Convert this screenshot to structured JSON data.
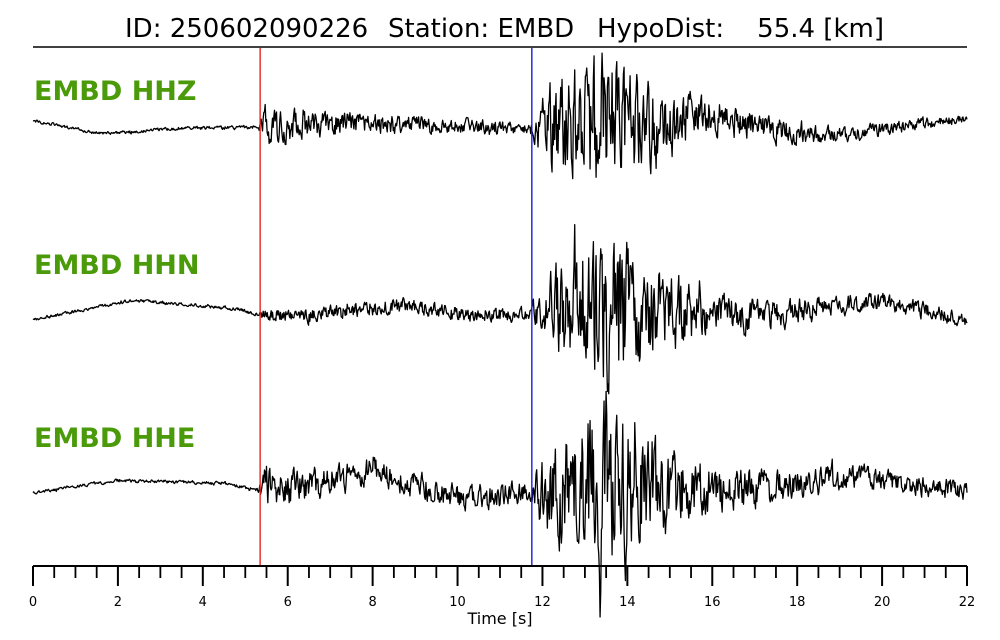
{
  "header": {
    "id_text": "ID: 250602090226",
    "station_text": "Station: EMBD",
    "hypodist_text": "HypoDist:    55.4 [km]"
  },
  "chart_data": {
    "type": "line",
    "event_id": "250602090226",
    "station": "EMBD",
    "hypodist_km": 55.4,
    "xlabel": "Time [s]",
    "xlim": [
      0,
      22
    ],
    "major_ticks": [
      0,
      2,
      4,
      6,
      8,
      10,
      12,
      14,
      16,
      18,
      20,
      22
    ],
    "minor_tick_step": 0.5,
    "p_pick_s": 5.35,
    "s_pick_s": 11.75,
    "p_pick_color": "#e8231e",
    "s_pick_color": "#1a1adb",
    "trace_color": "#000000",
    "channel_label_color": "#4a9a0a",
    "series": [
      {
        "name": "EMBD HHZ",
        "envelope": [
          {
            "t": 0,
            "v": 0.1
          },
          {
            "t": 1.6,
            "v": -0.04
          },
          {
            "t": 3.5,
            "v": 0.02
          },
          {
            "t": 5.3,
            "v": 0.03
          },
          {
            "t": 7.5,
            "v": 0.08
          },
          {
            "t": 9.5,
            "v": 0.04
          },
          {
            "t": 11.7,
            "v": 0.02
          },
          {
            "t": 13.5,
            "v": 0.0
          },
          {
            "t": 16.0,
            "v": 0.15
          },
          {
            "t": 18.0,
            "v": -0.05
          },
          {
            "t": 19.0,
            "v": -0.05
          },
          {
            "t": 22.0,
            "v": 0.12
          }
        ],
        "amplitude": [
          {
            "t": 0,
            "a": 0.015
          },
          {
            "t": 5.3,
            "a": 0.02
          },
          {
            "t": 5.45,
            "a": 0.2
          },
          {
            "t": 7.0,
            "a": 0.12
          },
          {
            "t": 11.7,
            "a": 0.06
          },
          {
            "t": 12.2,
            "a": 0.45
          },
          {
            "t": 13.5,
            "a": 0.8
          },
          {
            "t": 14.4,
            "a": 0.45
          },
          {
            "t": 16.0,
            "a": 0.18
          },
          {
            "t": 19.0,
            "a": 0.08
          },
          {
            "t": 22.0,
            "a": 0.05
          }
        ]
      },
      {
        "name": "EMBD HHN",
        "envelope": [
          {
            "t": 0,
            "v": -0.08
          },
          {
            "t": 2.3,
            "v": 0.12
          },
          {
            "t": 4.5,
            "v": 0.05
          },
          {
            "t": 5.3,
            "v": -0.02
          },
          {
            "t": 6.5,
            "v": -0.05
          },
          {
            "t": 8.5,
            "v": 0.08
          },
          {
            "t": 10.5,
            "v": -0.04
          },
          {
            "t": 11.7,
            "v": -0.02
          },
          {
            "t": 13.5,
            "v": 0.02
          },
          {
            "t": 17.0,
            "v": -0.05
          },
          {
            "t": 19.8,
            "v": 0.12
          },
          {
            "t": 22.0,
            "v": -0.08
          }
        ],
        "amplitude": [
          {
            "t": 0,
            "a": 0.015
          },
          {
            "t": 5.3,
            "a": 0.02
          },
          {
            "t": 5.45,
            "a": 0.07
          },
          {
            "t": 8.0,
            "a": 0.09
          },
          {
            "t": 11.7,
            "a": 0.07
          },
          {
            "t": 12.2,
            "a": 0.4
          },
          {
            "t": 13.5,
            "a": 0.85
          },
          {
            "t": 14.5,
            "a": 0.5
          },
          {
            "t": 16.0,
            "a": 0.2
          },
          {
            "t": 19.0,
            "a": 0.1
          },
          {
            "t": 22.0,
            "a": 0.08
          }
        ]
      },
      {
        "name": "EMBD HHE",
        "envelope": [
          {
            "t": 0,
            "v": -0.05
          },
          {
            "t": 2.0,
            "v": 0.08
          },
          {
            "t": 4.5,
            "v": 0.05
          },
          {
            "t": 5.3,
            "v": -0.02
          },
          {
            "t": 6.5,
            "v": 0.02
          },
          {
            "t": 8.0,
            "v": 0.18
          },
          {
            "t": 10.0,
            "v": -0.1
          },
          {
            "t": 11.7,
            "v": -0.05
          },
          {
            "t": 13.5,
            "v": 0.05
          },
          {
            "t": 16.5,
            "v": -0.02
          },
          {
            "t": 19.5,
            "v": 0.12
          },
          {
            "t": 22.0,
            "v": -0.06
          }
        ],
        "amplitude": [
          {
            "t": 0,
            "a": 0.015
          },
          {
            "t": 5.3,
            "a": 0.02
          },
          {
            "t": 5.45,
            "a": 0.22
          },
          {
            "t": 7.0,
            "a": 0.15
          },
          {
            "t": 11.7,
            "a": 0.12
          },
          {
            "t": 12.2,
            "a": 0.5
          },
          {
            "t": 13.5,
            "a": 0.9
          },
          {
            "t": 14.5,
            "a": 0.55
          },
          {
            "t": 16.0,
            "a": 0.25
          },
          {
            "t": 19.0,
            "a": 0.12
          },
          {
            "t": 22.0,
            "a": 0.1
          }
        ]
      }
    ]
  }
}
